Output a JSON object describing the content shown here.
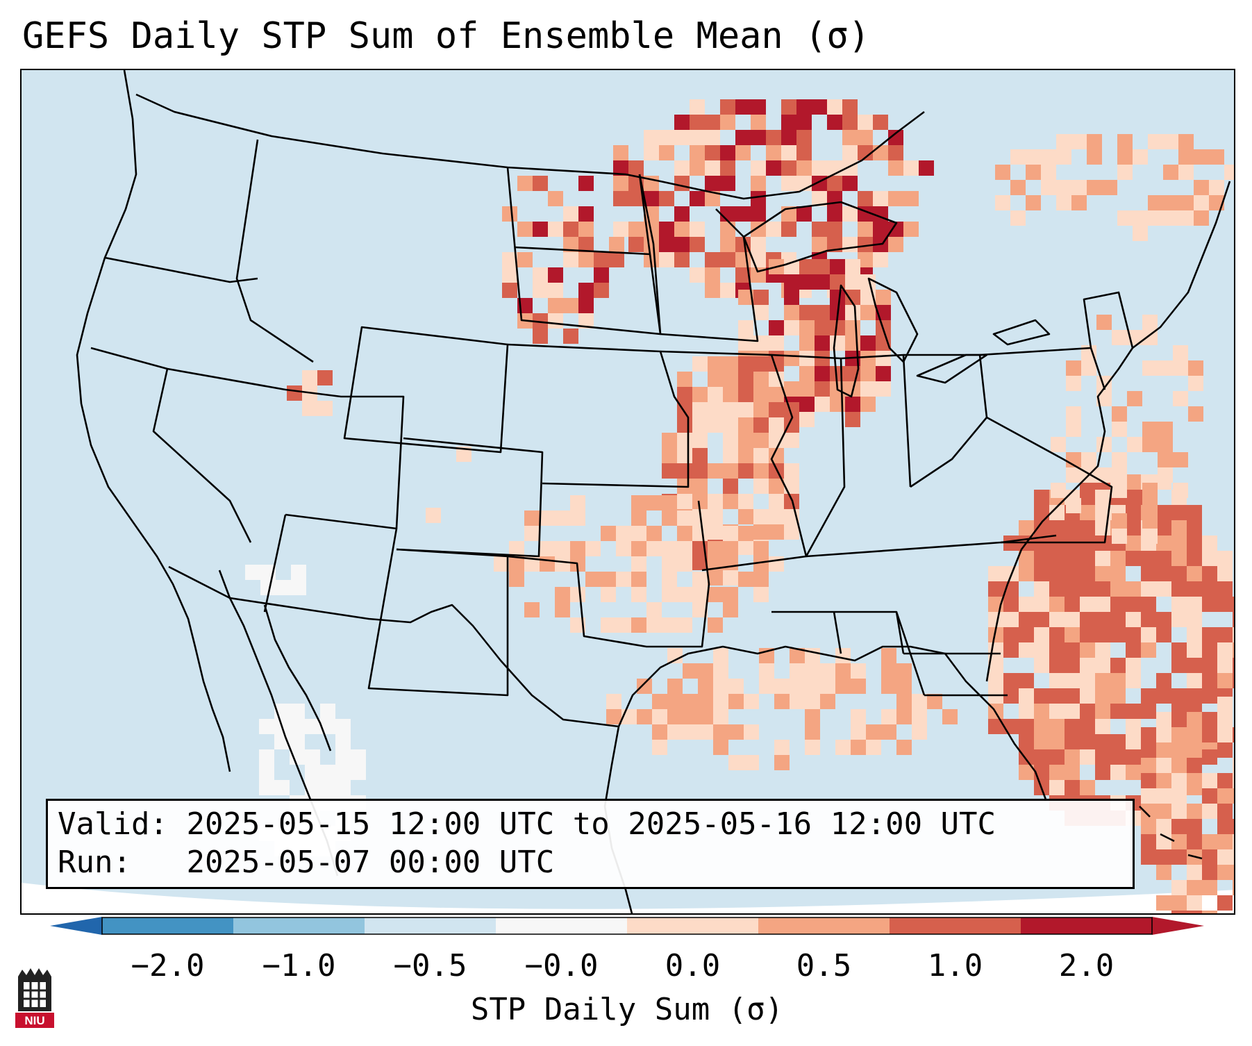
{
  "title": "GEFS Daily STP Sum of Ensemble Mean (σ)",
  "info": {
    "valid_label": "Valid:",
    "valid_value": "2025-05-15 12:00 UTC to 2025-05-16 12:00 UTC",
    "run_label": "Run:",
    "run_value": "2025-05-07 00:00 UTC"
  },
  "colorbar": {
    "label": "STP Daily Sum (σ)",
    "ticks": [
      "−2.0",
      "−1.0",
      "−0.5",
      "−0.0",
      "0.0",
      "0.5",
      "1.0",
      "2.0"
    ],
    "colors": [
      "#4393c3",
      "#92c5de",
      "#d1e5f0",
      "#f7f7f7",
      "#fddbc7",
      "#f4a582",
      "#d6604d",
      "#b2182b"
    ],
    "extend_low_color": "#2166ac",
    "extend_high_color": "#b2182b"
  },
  "map": {
    "background_color": "#d1e5f0",
    "land_background_color": "#d1e5f0",
    "outside_domain_color": "#ffffff",
    "region": "Continental United States",
    "anomaly_regions": [
      {
        "name": "Upper Midwest / Great Lakes",
        "category": "2.0"
      },
      {
        "name": "Northern Plains / Dakotas",
        "category": "1.0"
      },
      {
        "name": "Iowa / Missouri",
        "category": "1.0"
      },
      {
        "name": "Southeast Atlantic coast",
        "category": "1.0"
      },
      {
        "name": "Southern Plains",
        "category": "0.5"
      },
      {
        "name": "Gulf of Mexico",
        "category": "0.0"
      },
      {
        "name": "Northern Mexico",
        "category": "-0.0"
      }
    ]
  },
  "logo": {
    "text": "NIU",
    "color": "#c8102e"
  }
}
